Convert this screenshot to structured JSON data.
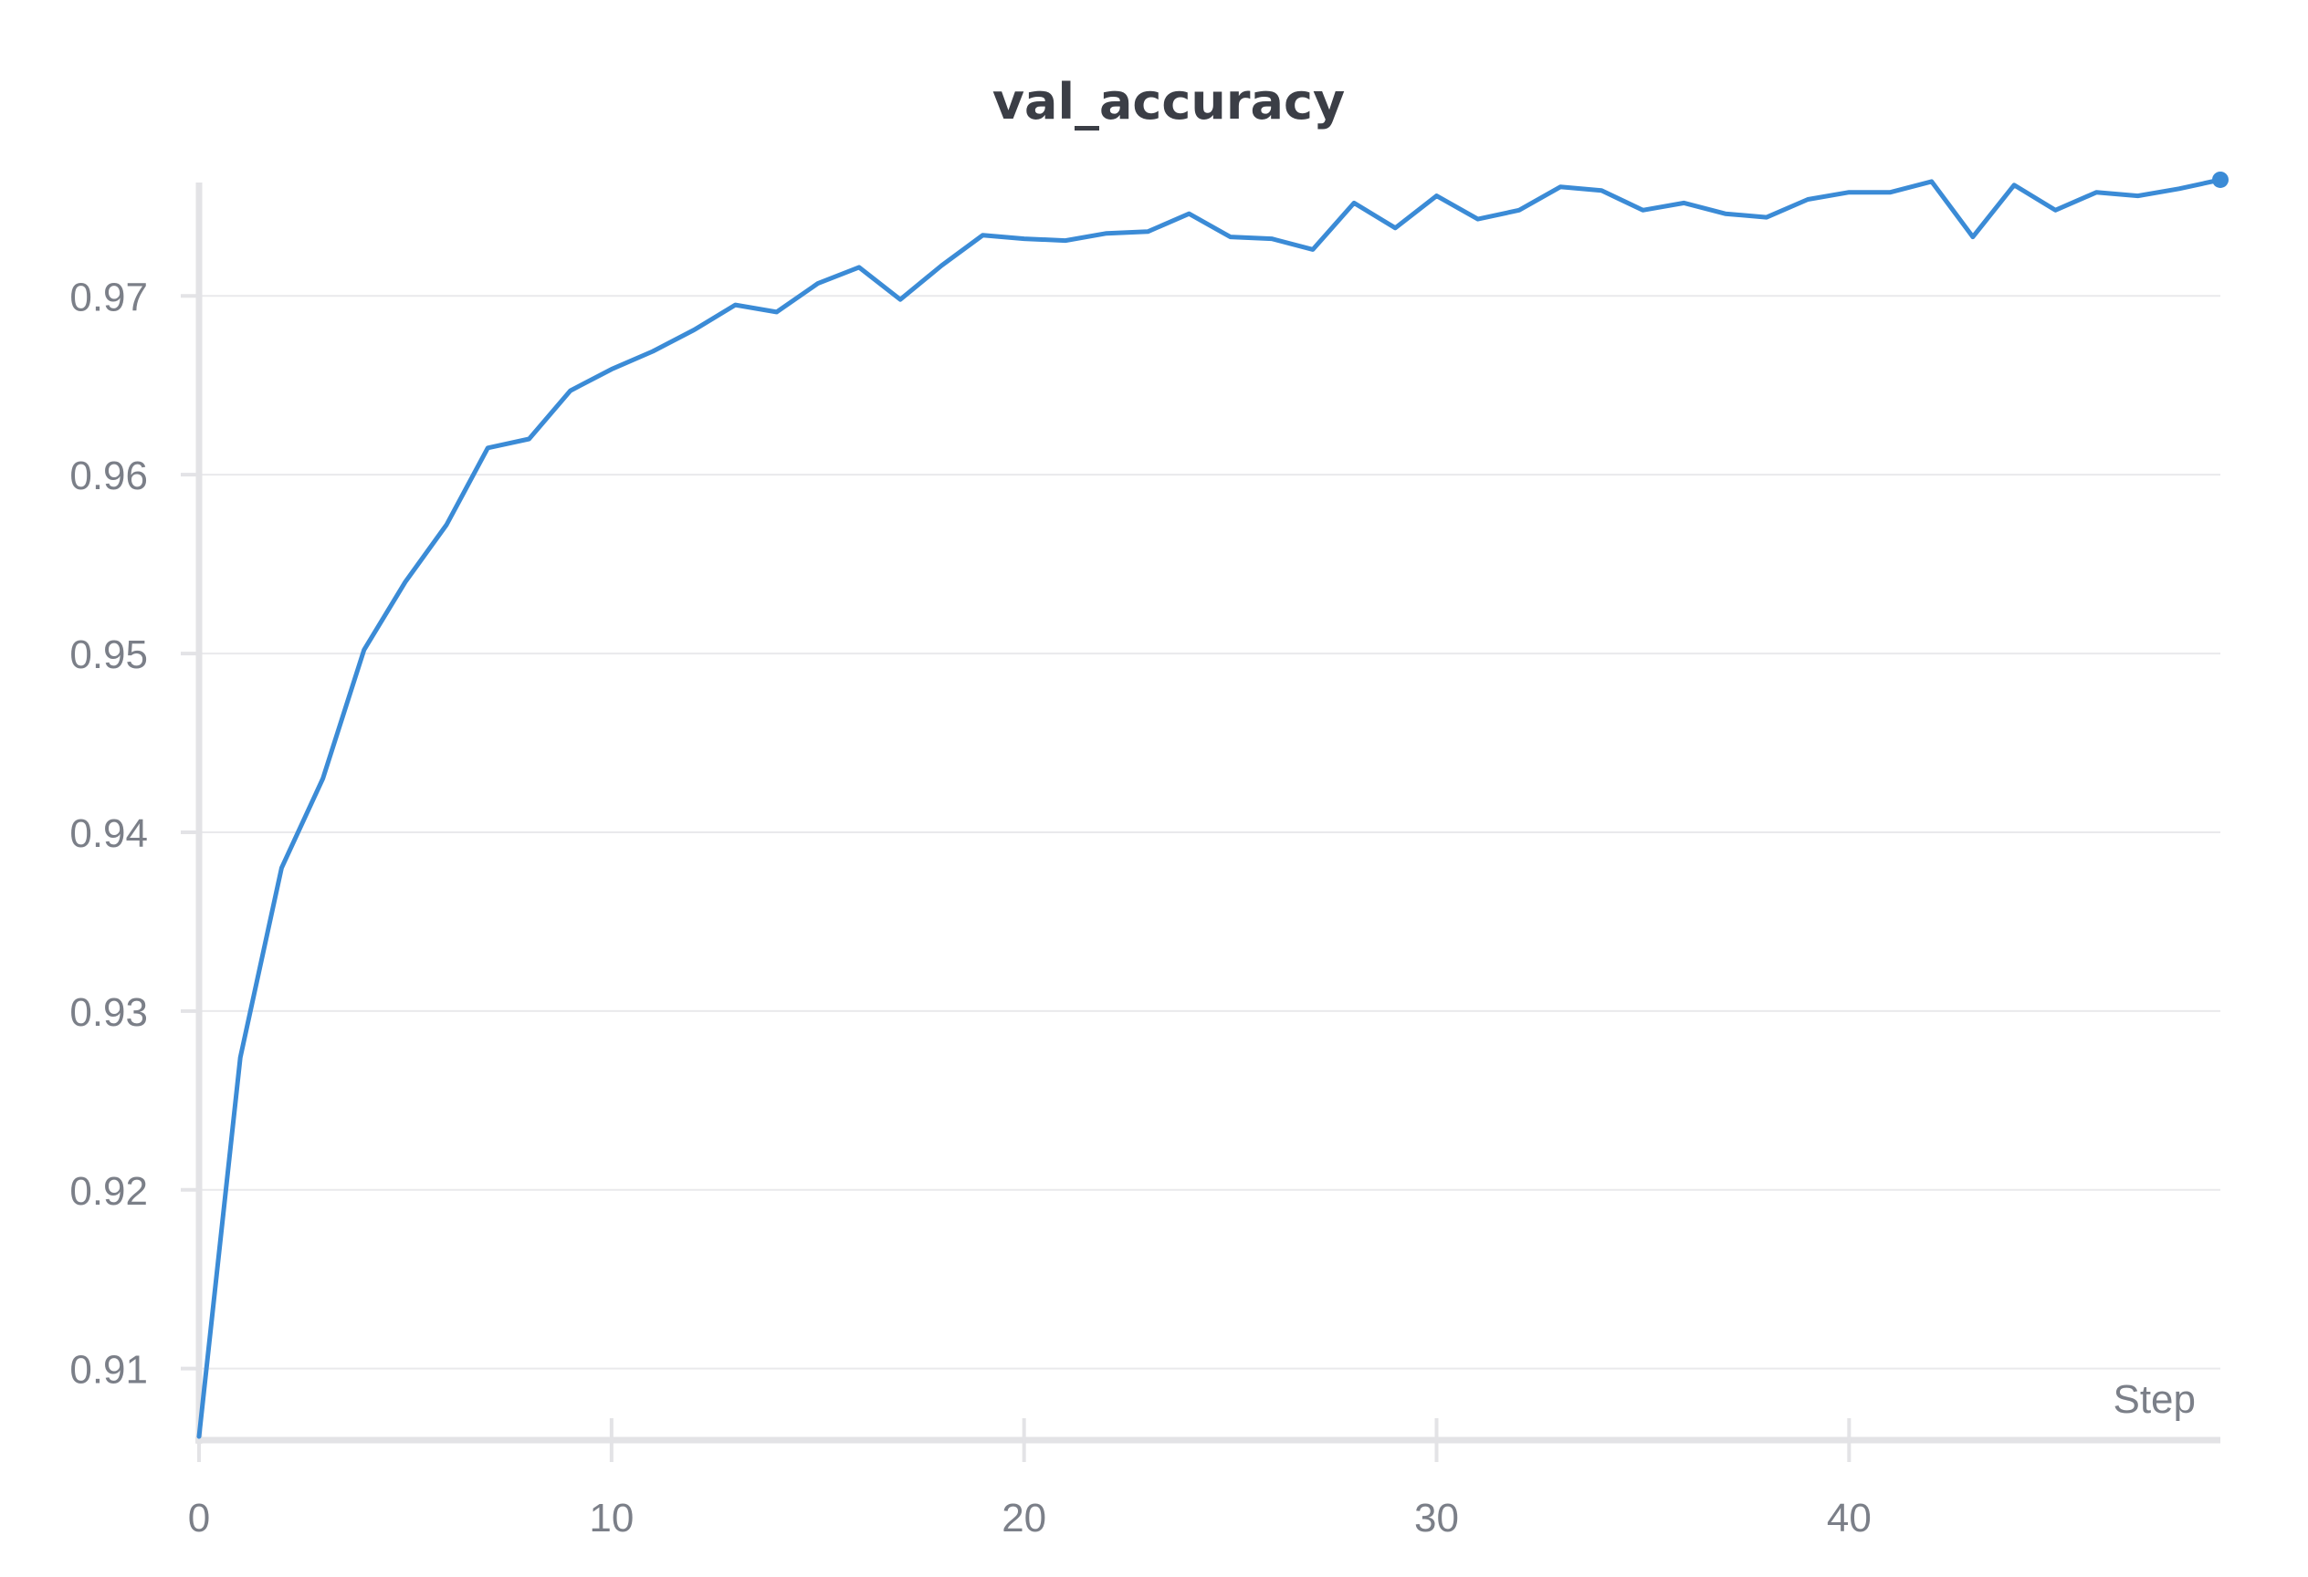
{
  "chart_data": {
    "type": "line",
    "title": "val_accuracy",
    "xlabel": "Step",
    "ylabel": "",
    "xlim": [
      0,
      49
    ],
    "ylim": [
      0.906,
      0.9766
    ],
    "xticks": [
      0,
      10,
      20,
      30,
      40
    ],
    "xtick_labels": [
      "0",
      "10",
      "20",
      "30",
      "40"
    ],
    "yticks": [
      0.91,
      0.92,
      0.93,
      0.94,
      0.95,
      0.96,
      0.97
    ],
    "ytick_labels": [
      "0.91",
      "0.92",
      "0.93",
      "0.94",
      "0.95",
      "0.96",
      "0.97"
    ],
    "grid": true,
    "legend": "none",
    "series": [
      {
        "color": "#3b8bd6",
        "x": [
          0,
          1,
          2,
          3,
          4,
          5,
          6,
          7,
          8,
          9,
          10,
          11,
          12,
          13,
          14,
          15,
          16,
          17,
          18,
          19,
          20,
          21,
          22,
          23,
          24,
          25,
          26,
          27,
          28,
          29,
          30,
          31,
          32,
          33,
          34,
          35,
          36,
          37,
          38,
          39,
          40,
          41,
          42,
          43,
          44,
          45,
          46,
          47,
          48,
          49
        ],
        "y": [
          0.9062,
          0.9274,
          0.938,
          0.943,
          0.9502,
          0.954,
          0.9572,
          0.9615,
          0.962,
          0.9647,
          0.9659,
          0.9669,
          0.9681,
          0.9695,
          0.9691,
          0.9707,
          0.9716,
          0.9698,
          0.9717,
          0.9734,
          0.9732,
          0.9731,
          0.9735,
          0.9736,
          0.9746,
          0.9733,
          0.9732,
          0.9726,
          0.9752,
          0.9738,
          0.9756,
          0.9743,
          0.9748,
          0.9761,
          0.9759,
          0.9748,
          0.9752,
          0.9746,
          0.9744,
          0.9754,
          0.9758,
          0.9758,
          0.9764,
          0.9733,
          0.9762,
          0.9748,
          0.9758,
          0.9756,
          0.976,
          0.9765
        ]
      }
    ]
  }
}
